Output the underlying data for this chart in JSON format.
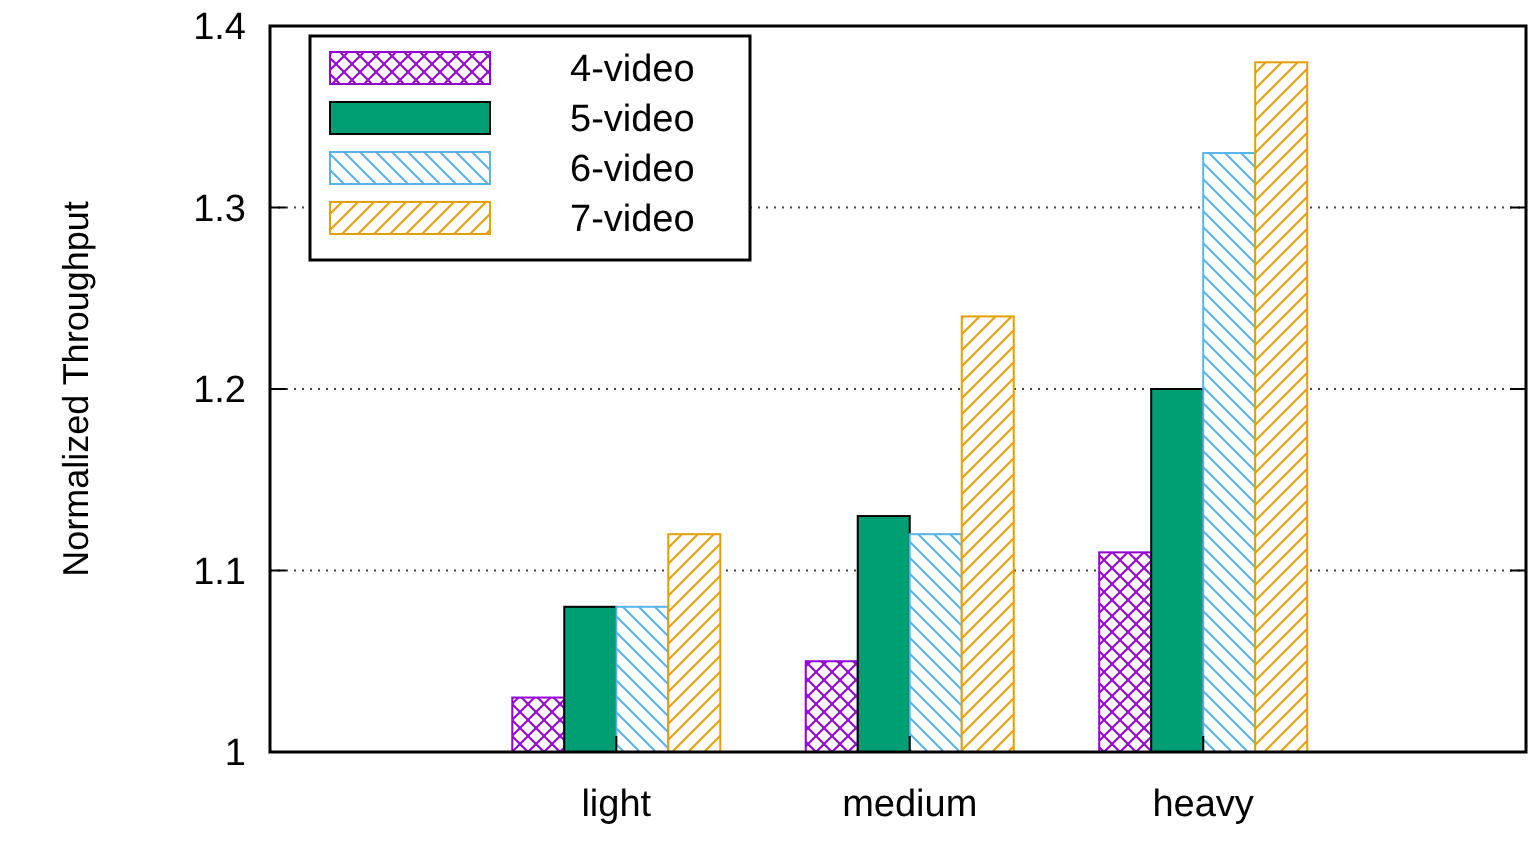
{
  "chart_data": {
    "type": "bar",
    "ylabel": "Normalized Throughput",
    "categories": [
      "light",
      "medium",
      "heavy"
    ],
    "series": [
      {
        "name": "4-video",
        "color": "#9400d3",
        "values": [
          1.03,
          1.05,
          1.11
        ]
      },
      {
        "name": "5-video",
        "color": "#009e73",
        "values": [
          1.08,
          1.13,
          1.2
        ]
      },
      {
        "name": "6-video",
        "color": "#56b4e9",
        "values": [
          1.08,
          1.12,
          1.33
        ]
      },
      {
        "name": "7-video",
        "color": "#e69f00",
        "values": [
          1.12,
          1.24,
          1.38
        ]
      }
    ],
    "ylim": [
      1,
      1.4
    ],
    "yticks": [
      1,
      1.1,
      1.2,
      1.3,
      1.4
    ],
    "grid": "y",
    "legend": "top left"
  }
}
